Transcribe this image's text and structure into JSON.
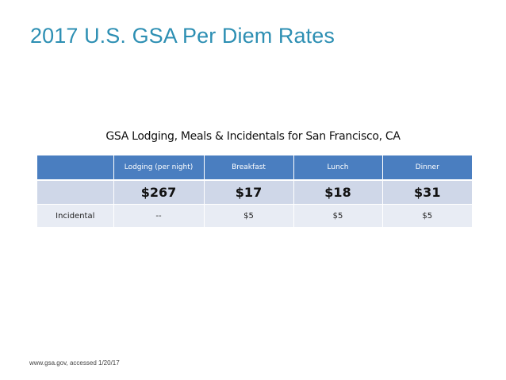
{
  "slide": {
    "title": "2017 U.S. GSA Per Diem Rates",
    "table_caption": "GSA Lodging, Meals & Incidentals for San Francisco, CA",
    "footnote": "www.gsa.gov, accessed 1/20/17",
    "colors": {
      "title": "#2d8fb3",
      "header_fill": "#4a7ec0",
      "rate_row_fill": "#cfd7e8",
      "incidental_row_fill": "#e8ecf4"
    }
  },
  "table": {
    "headers": [
      "",
      "Lodging (per night)",
      "Breakfast",
      "Lunch",
      "Dinner"
    ],
    "rows": [
      [
        "",
        "$267",
        "$17",
        "$18",
        "$31"
      ],
      [
        "Incidental",
        "--",
        "$5",
        "$5",
        "$5"
      ]
    ]
  }
}
